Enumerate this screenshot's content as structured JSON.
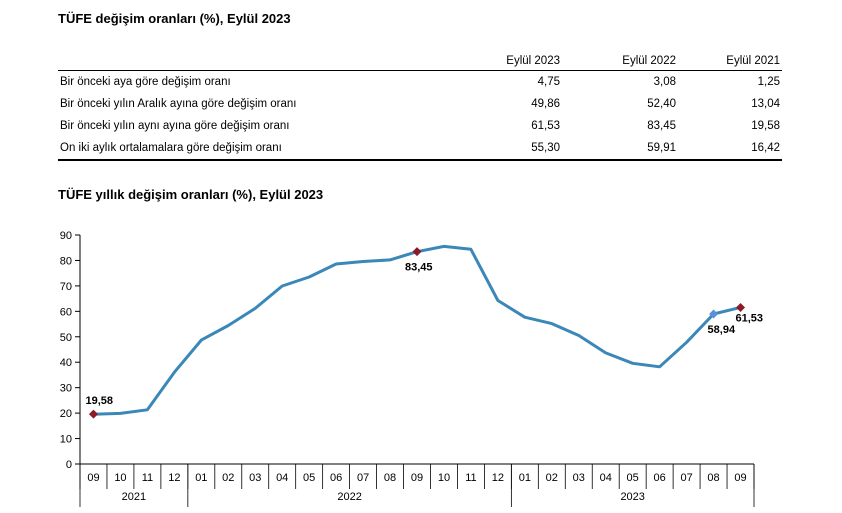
{
  "table_title": "TÜFE değişim oranları (%), Eylül 2023",
  "table": {
    "columns": [
      "",
      "Eylül 2023",
      "Eylül 2022",
      "Eylül 2021"
    ],
    "rows": [
      {
        "label": "Bir önceki aya göre değişim oranı",
        "values": [
          "4,75",
          "3,08",
          "1,25"
        ]
      },
      {
        "label": "Bir önceki yılın Aralık ayına göre değişim oranı",
        "values": [
          "49,86",
          "52,40",
          "13,04"
        ]
      },
      {
        "label": "Bir önceki yılın aynı ayına göre değişim oranı",
        "values": [
          "61,53",
          "83,45",
          "19,58"
        ]
      },
      {
        "label": "On iki aylık ortalamalara göre değişim oranı",
        "values": [
          "55,30",
          "59,91",
          "16,42"
        ]
      }
    ]
  },
  "chart_title": "TÜFE yıllık değişim oranları (%), Eylül 2023",
  "chart_data": {
    "type": "line",
    "title": "TÜFE yıllık değişim oranları (%), Eylül 2023",
    "xlabel": "",
    "ylabel": "",
    "ylim": [
      0,
      90
    ],
    "yticks": [
      0,
      10,
      20,
      30,
      40,
      50,
      60,
      70,
      80,
      90
    ],
    "grid": false,
    "categories": [
      "09",
      "10",
      "11",
      "12",
      "01",
      "02",
      "03",
      "04",
      "05",
      "06",
      "07",
      "08",
      "09",
      "10",
      "11",
      "12",
      "01",
      "02",
      "03",
      "04",
      "05",
      "06",
      "07",
      "08",
      "09"
    ],
    "year_groups": [
      {
        "label": "2021",
        "count": 4
      },
      {
        "label": "2022",
        "count": 12
      },
      {
        "label": "2023",
        "count": 9
      }
    ],
    "series": [
      {
        "values": [
          19.58,
          19.89,
          21.31,
          36.08,
          48.69,
          54.44,
          61.14,
          69.97,
          73.5,
          78.62,
          79.6,
          80.21,
          83.45,
          85.51,
          84.39,
          64.27,
          57.68,
          55.18,
          50.51,
          43.68,
          39.59,
          38.21,
          47.83,
          58.94,
          61.53
        ],
        "color": "#3a87b8"
      }
    ],
    "markers": [
      {
        "index": 0,
        "label": "19,58",
        "color": "#8b1a2a"
      },
      {
        "index": 12,
        "label": "83,45",
        "color": "#8b1a2a"
      },
      {
        "index": 23,
        "label": "58,94",
        "color": "#5b8fd6"
      },
      {
        "index": 24,
        "label": "61,53",
        "color": "#8b1a2a"
      }
    ]
  }
}
